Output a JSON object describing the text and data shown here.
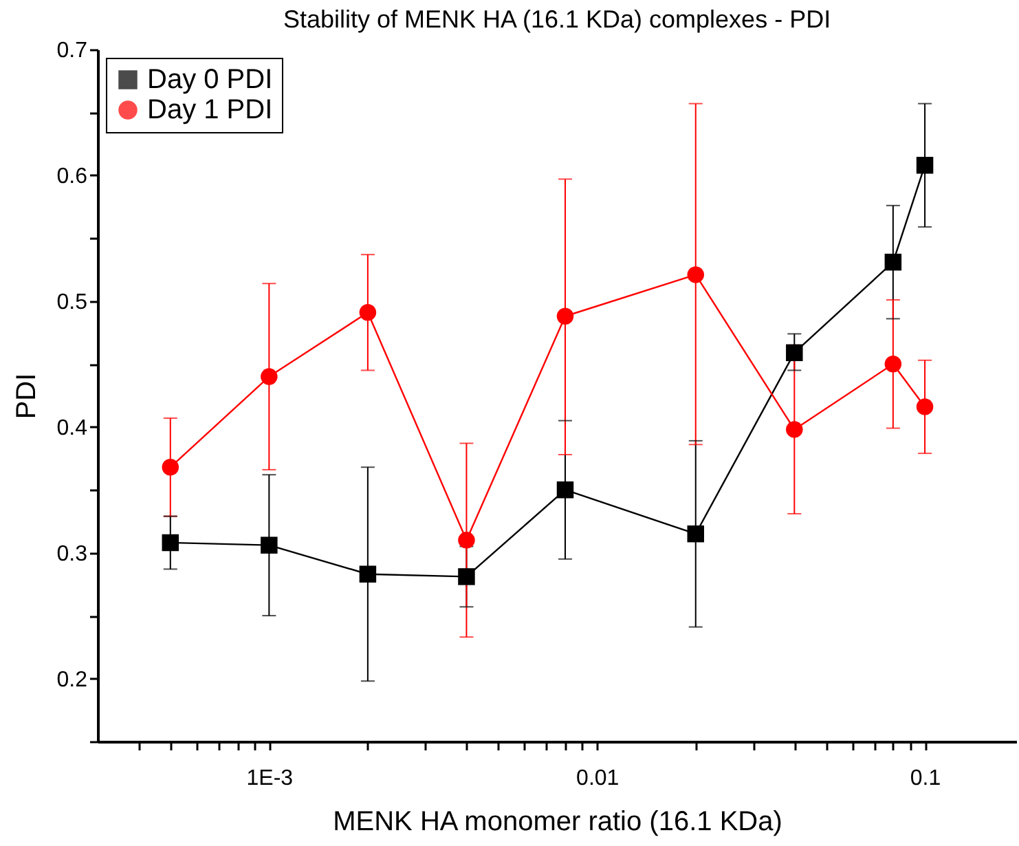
{
  "chart_data": {
    "type": "line",
    "title": "Stability of MENK HA (16.1 KDa) complexes - PDI",
    "xlabel": "MENK HA monomer ratio (16.1 KDa)",
    "ylabel": "PDI",
    "log": "x",
    "grid": false,
    "legend": "top left",
    "line_style": "solid",
    "x": [
      0.0005,
      0.001,
      0.002,
      0.004,
      0.008,
      0.02,
      0.04,
      0.08,
      0.1
    ],
    "xlim": [
      0.0003,
      0.19
    ],
    "xticks": [
      {
        "value": 0.0004,
        "label": null
      },
      {
        "value": 0.0005,
        "label": null
      },
      {
        "value": 0.0006,
        "label": null
      },
      {
        "value": 0.0007,
        "label": null
      },
      {
        "value": 0.0008,
        "label": null
      },
      {
        "value": 0.0009,
        "label": null
      },
      {
        "value": 0.001,
        "label": "1E-3"
      },
      {
        "value": 0.002,
        "label": null
      },
      {
        "value": 0.003,
        "label": null
      },
      {
        "value": 0.004,
        "label": null
      },
      {
        "value": 0.005,
        "label": null
      },
      {
        "value": 0.006,
        "label": null
      },
      {
        "value": 0.007,
        "label": null
      },
      {
        "value": 0.008,
        "label": null
      },
      {
        "value": 0.009,
        "label": null
      },
      0.01,
      {
        "value": 0.02,
        "label": null
      },
      {
        "value": 0.03,
        "label": null
      },
      {
        "value": 0.04,
        "label": null
      },
      {
        "value": 0.05,
        "label": null
      },
      {
        "value": 0.06,
        "label": null
      },
      {
        "value": 0.07,
        "label": null
      },
      {
        "value": 0.08,
        "label": null
      },
      {
        "value": 0.09,
        "label": null
      },
      0.1
    ],
    "ylim": [
      0.15,
      0.7
    ],
    "yticks": [
      {
        "value": 0.15,
        "label": null
      },
      0.2,
      {
        "value": 0.25,
        "label": null
      },
      0.3,
      {
        "value": 0.35,
        "label": null
      },
      0.4,
      {
        "value": 0.45,
        "label": null
      },
      0.5,
      {
        "value": 0.55,
        "label": null
      },
      0.6,
      {
        "value": 0.65,
        "label": null
      },
      0.7
    ],
    "series": [
      {
        "name": "Day 0 PDI",
        "color": "#000000",
        "marker": "square",
        "values": [
          0.308,
          0.306,
          0.283,
          0.281,
          0.35,
          0.315,
          0.459,
          0.531,
          0.608
        ],
        "errors": [
          [
            0.287,
            0.329
          ],
          [
            0.25,
            0.362
          ],
          [
            0.198,
            0.368
          ],
          [
            0.257,
            0.305
          ],
          [
            0.295,
            0.405
          ],
          [
            0.241,
            0.389
          ],
          [
            0.445,
            0.474
          ],
          [
            0.486,
            0.576
          ],
          [
            0.559,
            0.657
          ]
        ]
      },
      {
        "name": "Day 1 PDI",
        "color": "#ff0000",
        "marker": "circle",
        "values": [
          0.368,
          0.44,
          0.491,
          0.31,
          0.488,
          0.521,
          0.398,
          0.45,
          0.416
        ],
        "errors": [
          [
            0.329,
            0.407
          ],
          [
            0.366,
            0.514
          ],
          [
            0.445,
            0.537
          ],
          [
            0.233,
            0.387
          ],
          [
            0.378,
            0.597
          ],
          [
            0.386,
            0.657
          ],
          [
            0.331,
            0.465
          ],
          [
            0.399,
            0.501
          ],
          [
            0.379,
            0.453
          ]
        ]
      }
    ]
  }
}
